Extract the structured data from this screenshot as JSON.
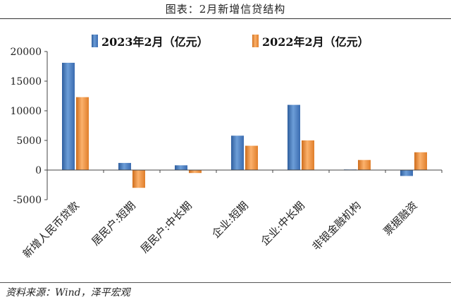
{
  "figure_title": "图表：2月新增信贷结构",
  "source_note": "资料来源：Wind，泽平宏观",
  "chart_data": {
    "type": "bar",
    "title": "",
    "xlabel": "",
    "ylabel": "",
    "ylim": [
      -5000,
      20000
    ],
    "yticks": [
      20000,
      15000,
      10000,
      5000,
      0,
      -5000
    ],
    "grid": false,
    "legend_position": "top",
    "categories": [
      "新增人民币贷款",
      "居民户:短期",
      "居民户:中长期",
      "企业:短期",
      "企业:中长期",
      "非银金融机构",
      "票据融资"
    ],
    "series": [
      {
        "name": "2023年2月（亿元）",
        "color": "#4f81bd",
        "values": [
          18100,
          1200,
          800,
          5800,
          11000,
          100,
          -1000
        ]
      },
      {
        "name": "2022年2月（亿元）",
        "color": "#f79646",
        "values": [
          12300,
          -3000,
          -500,
          4100,
          5000,
          1700,
          3000
        ]
      }
    ]
  }
}
